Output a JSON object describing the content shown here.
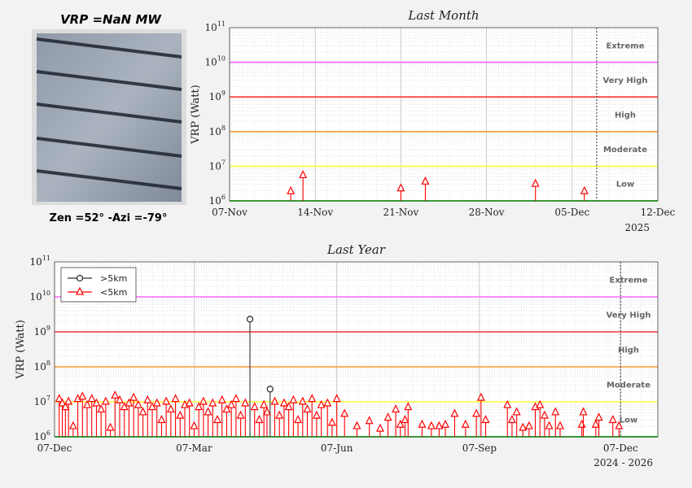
{
  "thumbnail": {
    "title": "VRP =NaN MW",
    "caption": "Zen =52° -Azi =-79°"
  },
  "colors": {
    "extreme": "#ff66ff",
    "very_high": "#ff3333",
    "high": "#ff9933",
    "moderate": "#ffff33",
    "low": "#33cc33",
    "above_5km": "#333333",
    "below_5km": "#ff0000"
  },
  "chart_data": [
    {
      "type": "stem",
      "title": "Last Month",
      "ylabel": "VRP (Watt)",
      "yscale": "log",
      "ylim": [
        1000000,
        100000000000
      ],
      "yticks": [
        "10^6",
        "10^7",
        "10^8",
        "10^9",
        "10^10",
        "10^11"
      ],
      "xlim": [
        "2025-11-07",
        "2025-12-12"
      ],
      "xticks": [
        "07-Nov",
        "14-Nov",
        "21-Nov",
        "28-Nov",
        "05-Dec",
        "12-Dec"
      ],
      "xlabel_year": "2025",
      "current_date": "2025-12-07",
      "zones": [
        "Extreme",
        "Very High",
        "High",
        "Moderate",
        "Low"
      ],
      "grid": true,
      "series": [
        {
          "marker": "triangle",
          "points": [
            [
              "2025-11-12",
              1900000
            ],
            [
              "2025-11-13",
              5500000
            ],
            [
              "2025-11-21",
              2300000
            ],
            [
              "2025-11-23",
              3600000
            ],
            [
              "2025-12-02",
              3100000
            ],
            [
              "2025-12-06",
              1900000
            ]
          ]
        }
      ]
    },
    {
      "type": "stem",
      "title": "Last Year",
      "ylabel": "VRP (Watt)",
      "yscale": "log",
      "ylim": [
        1000000,
        100000000000
      ],
      "yticks": [
        "10^6",
        "10^7",
        "10^8",
        "10^9",
        "10^10",
        "10^11"
      ],
      "xlim": [
        "2024-12-07",
        "2025-12-31"
      ],
      "xticks": [
        "07-Dec",
        "07-Mar",
        "07-Jun",
        "07-Sep",
        "07-Dec"
      ],
      "xlabel_year": "2024 - 2026",
      "current_date": "2025-12-07",
      "zones": [
        "Extreme",
        "Very High",
        "High",
        "Moderate",
        "Low"
      ],
      "legend_position": "top-left",
      "grid": true,
      "series": [
        {
          "name": ">5km",
          "marker": "circle",
          "points": [
            [
              "2025-04-12",
              2300000000
            ],
            [
              "2025-04-25",
              23000000
            ]
          ]
        },
        {
          "name": "<5km",
          "marker": "triangle",
          "points": [
            [
              "2024-12-10",
              12000000
            ],
            [
              "2024-12-12",
              9000000
            ],
            [
              "2024-12-14",
              7000000
            ],
            [
              "2024-12-16",
              10000000
            ],
            [
              "2024-12-19",
              2000000
            ],
            [
              "2024-12-22",
              12000000
            ],
            [
              "2024-12-25",
              14000000
            ],
            [
              "2024-12-28",
              8000000
            ],
            [
              "2024-12-31",
              12000000
            ],
            [
              "2025-01-03",
              9000000
            ],
            [
              "2025-01-06",
              6000000
            ],
            [
              "2025-01-09",
              10000000
            ],
            [
              "2025-01-12",
              1800000
            ],
            [
              "2025-01-15",
              15000000
            ],
            [
              "2025-01-18",
              11000000
            ],
            [
              "2025-01-21",
              7000000
            ],
            [
              "2025-01-24",
              9000000
            ],
            [
              "2025-01-27",
              13000000
            ],
            [
              "2025-01-30",
              8000000
            ],
            [
              "2025-02-02",
              5000000
            ],
            [
              "2025-02-05",
              11000000
            ],
            [
              "2025-02-08",
              7000000
            ],
            [
              "2025-02-11",
              9000000
            ],
            [
              "2025-02-14",
              3000000
            ],
            [
              "2025-02-17",
              10000000
            ],
            [
              "2025-02-20",
              6000000
            ],
            [
              "2025-02-23",
              12000000
            ],
            [
              "2025-02-26",
              4000000
            ],
            [
              "2025-03-01",
              8000000
            ],
            [
              "2025-03-04",
              9000000
            ],
            [
              "2025-03-07",
              2000000
            ],
            [
              "2025-03-10",
              7000000
            ],
            [
              "2025-03-13",
              10000000
            ],
            [
              "2025-03-16",
              5000000
            ],
            [
              "2025-03-19",
              9000000
            ],
            [
              "2025-03-22",
              3000000
            ],
            [
              "2025-03-25",
              11000000
            ],
            [
              "2025-03-28",
              6000000
            ],
            [
              "2025-03-31",
              8000000
            ],
            [
              "2025-04-03",
              12000000
            ],
            [
              "2025-04-06",
              4000000
            ],
            [
              "2025-04-09",
              9000000
            ],
            [
              "2025-04-15",
              7000000
            ],
            [
              "2025-04-18",
              3000000
            ],
            [
              "2025-04-21",
              8000000
            ],
            [
              "2025-04-23",
              5000000
            ],
            [
              "2025-04-28",
              10000000
            ],
            [
              "2025-05-01",
              4000000
            ],
            [
              "2025-05-04",
              9000000
            ],
            [
              "2025-05-07",
              7000000
            ],
            [
              "2025-05-10",
              11000000
            ],
            [
              "2025-05-13",
              3000000
            ],
            [
              "2025-05-16",
              10000000
            ],
            [
              "2025-05-19",
              6000000
            ],
            [
              "2025-05-22",
              12000000
            ],
            [
              "2025-05-25",
              4000000
            ],
            [
              "2025-05-28",
              8000000
            ],
            [
              "2025-06-01",
              9000000
            ],
            [
              "2025-06-04",
              2500000
            ],
            [
              "2025-06-07",
              12000000
            ],
            [
              "2025-06-12",
              4500000
            ],
            [
              "2025-06-20",
              2000000
            ],
            [
              "2025-06-28",
              2800000
            ],
            [
              "2025-07-05",
              1700000
            ],
            [
              "2025-07-10",
              3500000
            ],
            [
              "2025-07-15",
              6000000
            ],
            [
              "2025-07-18",
              2200000
            ],
            [
              "2025-07-21",
              3000000
            ],
            [
              "2025-07-23",
              7000000
            ],
            [
              "2025-08-01",
              2200000
            ],
            [
              "2025-08-07",
              2000000
            ],
            [
              "2025-08-12",
              2000000
            ],
            [
              "2025-08-16",
              2200000
            ],
            [
              "2025-08-22",
              4500000
            ],
            [
              "2025-08-29",
              2200000
            ],
            [
              "2025-09-05",
              4500000
            ],
            [
              "2025-09-08",
              13000000
            ],
            [
              "2025-09-11",
              3000000
            ],
            [
              "2025-09-25",
              8000000
            ],
            [
              "2025-09-28",
              3000000
            ],
            [
              "2025-10-01",
              5000000
            ],
            [
              "2025-10-05",
              1800000
            ],
            [
              "2025-10-09",
              2000000
            ],
            [
              "2025-10-13",
              7000000
            ],
            [
              "2025-10-16",
              8000000
            ],
            [
              "2025-10-19",
              4000000
            ],
            [
              "2025-10-22",
              2000000
            ],
            [
              "2025-10-26",
              5000000
            ],
            [
              "2025-10-29",
              2000000
            ],
            [
              "2025-11-12",
              2200000
            ],
            [
              "2025-11-13",
              5000000
            ],
            [
              "2025-11-21",
              2200000
            ],
            [
              "2025-11-23",
              3500000
            ],
            [
              "2025-12-02",
              3000000
            ],
            [
              "2025-12-06",
              2000000
            ]
          ]
        }
      ]
    }
  ]
}
